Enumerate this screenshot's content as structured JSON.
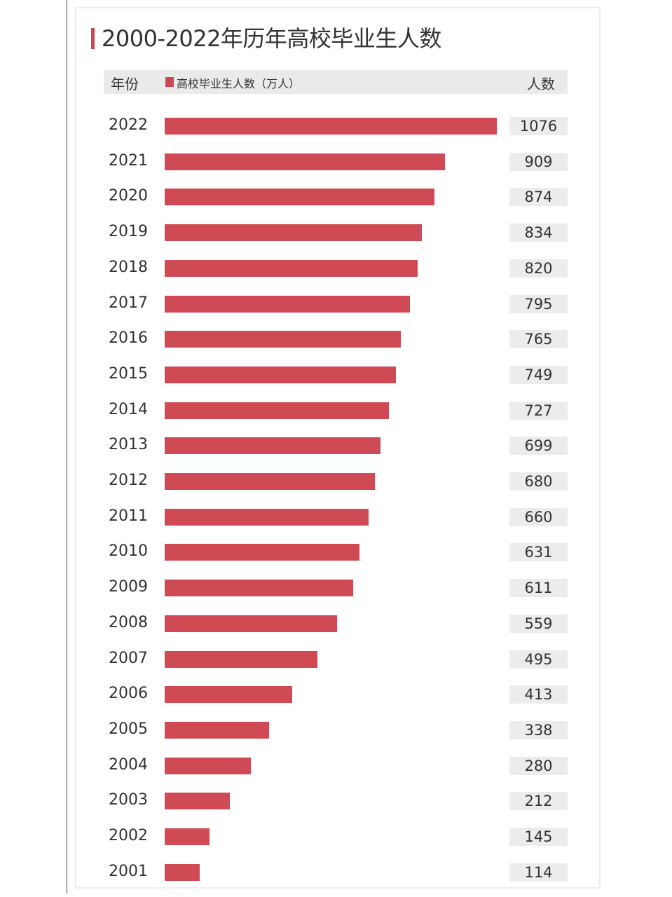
{
  "title": "2000-2022年历年高校毕业生人数",
  "header": {
    "year_label": "年份",
    "legend_label": "高校毕业生人数（万人）",
    "count_label": "人数"
  },
  "colors": {
    "bar": "#d04a55",
    "accent": "#c94a55"
  },
  "chart_data": {
    "type": "bar",
    "orientation": "horizontal",
    "title": "2000-2022年历年高校毕业生人数",
    "series": [
      {
        "name": "高校毕业生人数（万人）",
        "values": [
          1076,
          909,
          874,
          834,
          820,
          795,
          765,
          749,
          727,
          699,
          680,
          660,
          631,
          611,
          559,
          495,
          413,
          338,
          280,
          212,
          145,
          114
        ]
      }
    ],
    "categories": [
      "2022",
      "2021",
      "2020",
      "2019",
      "2018",
      "2017",
      "2016",
      "2015",
      "2014",
      "2013",
      "2012",
      "2011",
      "2010",
      "2009",
      "2008",
      "2007",
      "2006",
      "2005",
      "2004",
      "2003",
      "2002",
      "2001"
    ],
    "xlim": [
      0,
      1076
    ],
    "grid": false,
    "legend": "top"
  }
}
